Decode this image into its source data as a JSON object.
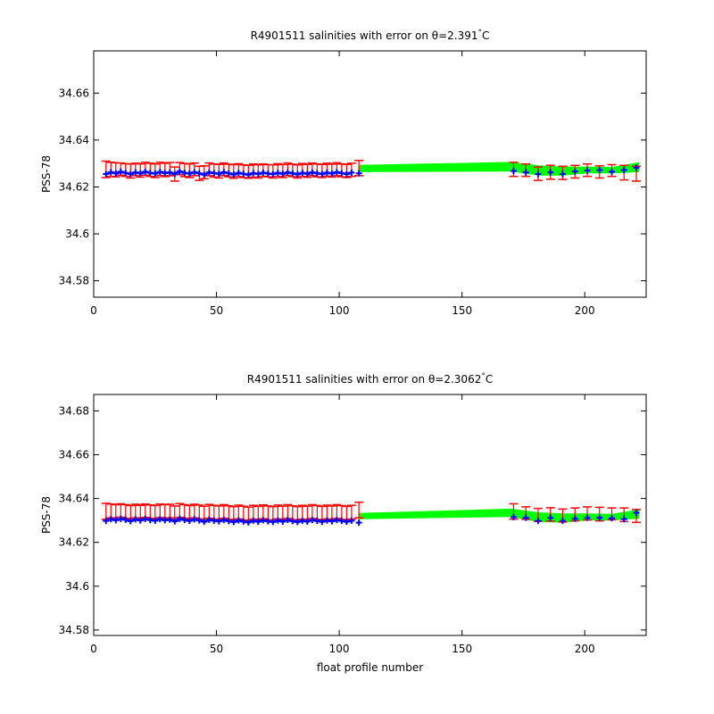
{
  "chart_data": [
    {
      "type": "scatter",
      "title": "R4901511 salinities with error on θ=2.391",
      "title_superscript": "°",
      "title_unit": "C",
      "xlabel": "",
      "ylabel": "PSS-78",
      "xlim": [
        0,
        225
      ],
      "ylim": [
        34.573,
        34.678
      ],
      "xticks": [
        0,
        50,
        100,
        150,
        200
      ],
      "yticks": [
        34.58,
        34.6,
        34.62,
        34.64,
        34.66
      ],
      "ytick_labels": [
        "34.58",
        "34.6",
        "34.62",
        "34.64",
        "34.66"
      ],
      "colors": {
        "uncal": "#0000ff",
        "error": "#ff0000",
        "band": "#00ff00"
      },
      "points": [
        [
          5,
          34.6255
        ],
        [
          7,
          34.6263
        ],
        [
          9,
          34.6258
        ],
        [
          11,
          34.6265
        ],
        [
          13,
          34.626
        ],
        [
          15,
          34.6255
        ],
        [
          17,
          34.6262
        ],
        [
          19,
          34.6258
        ],
        [
          21,
          34.6265
        ],
        [
          23,
          34.626
        ],
        [
          25,
          34.6257
        ],
        [
          27,
          34.6264
        ],
        [
          29,
          34.6259
        ],
        [
          31,
          34.6262
        ],
        [
          33,
          34.6255
        ],
        [
          35,
          34.6266
        ],
        [
          37,
          34.626
        ],
        [
          39,
          34.6257
        ],
        [
          41,
          34.6263
        ],
        [
          43,
          34.6258
        ],
        [
          45,
          34.6252
        ],
        [
          47,
          34.6262
        ],
        [
          49,
          34.6259
        ],
        [
          51,
          34.6256
        ],
        [
          53,
          34.6263
        ],
        [
          55,
          34.6258
        ],
        [
          57,
          34.6253
        ],
        [
          59,
          34.626
        ],
        [
          61,
          34.6256
        ],
        [
          63,
          34.6252
        ],
        [
          65,
          34.6259
        ],
        [
          67,
          34.6255
        ],
        [
          69,
          34.6261
        ],
        [
          71,
          34.6257
        ],
        [
          73,
          34.6255
        ],
        [
          75,
          34.626
        ],
        [
          77,
          34.6256
        ],
        [
          79,
          34.6262
        ],
        [
          81,
          34.6258
        ],
        [
          83,
          34.6254
        ],
        [
          85,
          34.626
        ],
        [
          87,
          34.6256
        ],
        [
          89,
          34.6262
        ],
        [
          91,
          34.6258
        ],
        [
          93,
          34.6255
        ],
        [
          95,
          34.6261
        ],
        [
          97,
          34.6257
        ],
        [
          99,
          34.6263
        ],
        [
          101,
          34.6259
        ],
        [
          103,
          34.6255
        ],
        [
          105,
          34.6261
        ],
        [
          108,
          34.6258
        ],
        [
          171,
          34.6268
        ],
        [
          176,
          34.6262
        ],
        [
          181,
          34.6255
        ],
        [
          186,
          34.6262
        ],
        [
          191,
          34.6255
        ],
        [
          196,
          34.6266
        ],
        [
          201,
          34.627
        ],
        [
          206,
          34.6272
        ],
        [
          211,
          34.6265
        ],
        [
          216,
          34.6272
        ],
        [
          221,
          34.6282
        ]
      ],
      "error_bars": [
        [
          5,
          34.624,
          34.631
        ],
        [
          7,
          34.6245,
          34.6305
        ],
        [
          9,
          34.6243,
          34.6303
        ],
        [
          11,
          34.625,
          34.6302
        ],
        [
          13,
          34.6245,
          34.6299
        ],
        [
          15,
          34.6238,
          34.6298
        ],
        [
          17,
          34.6248,
          34.6301
        ],
        [
          19,
          34.6242,
          34.6298
        ],
        [
          21,
          34.625,
          34.6305
        ],
        [
          23,
          34.6245,
          34.6301
        ],
        [
          25,
          34.624,
          34.6298
        ],
        [
          27,
          34.6248,
          34.6305
        ],
        [
          29,
          34.6244,
          34.6301
        ],
        [
          31,
          34.6248,
          34.6304
        ],
        [
          33,
          34.6225,
          34.6285
        ],
        [
          35,
          34.6252,
          34.6304
        ],
        [
          37,
          34.6244,
          34.63
        ],
        [
          39,
          34.624,
          34.6298
        ],
        [
          41,
          34.6248,
          34.6302
        ],
        [
          43,
          34.6228,
          34.6288
        ],
        [
          45,
          34.6235,
          34.629
        ],
        [
          47,
          34.6248,
          34.6302
        ],
        [
          49,
          34.6242,
          34.6298
        ],
        [
          51,
          34.6238,
          34.6296
        ],
        [
          53,
          34.6248,
          34.6302
        ],
        [
          55,
          34.6243,
          34.6297
        ],
        [
          57,
          34.6237,
          34.6295
        ],
        [
          59,
          34.6244,
          34.6299
        ],
        [
          61,
          34.624,
          34.6294
        ],
        [
          63,
          34.6237,
          34.6292
        ],
        [
          65,
          34.6242,
          34.6298
        ],
        [
          67,
          34.6238,
          34.6294
        ],
        [
          69,
          34.6245,
          34.6298
        ],
        [
          71,
          34.6243,
          34.6295
        ],
        [
          73,
          34.6238,
          34.6294
        ],
        [
          75,
          34.6245,
          34.6299
        ],
        [
          77,
          34.624,
          34.6295
        ],
        [
          79,
          34.6248,
          34.6302
        ],
        [
          81,
          34.6244,
          34.6297
        ],
        [
          83,
          34.6238,
          34.6294
        ],
        [
          85,
          34.6245,
          34.63
        ],
        [
          87,
          34.6241,
          34.6296
        ],
        [
          89,
          34.6248,
          34.6302
        ],
        [
          91,
          34.6243,
          34.6298
        ],
        [
          93,
          34.624,
          34.6296
        ],
        [
          95,
          34.6246,
          34.6301
        ],
        [
          97,
          34.6242,
          34.6297
        ],
        [
          99,
          34.6248,
          34.6303
        ],
        [
          101,
          34.6243,
          34.6298
        ],
        [
          103,
          34.624,
          34.6296
        ],
        [
          105,
          34.6245,
          34.6301
        ],
        [
          108,
          34.6248,
          34.6313
        ],
        [
          171,
          34.6245,
          34.6305
        ],
        [
          176,
          34.6245,
          34.6298
        ],
        [
          181,
          34.6228,
          34.6285
        ],
        [
          186,
          34.6233,
          34.6292
        ],
        [
          191,
          34.6232,
          34.6288
        ],
        [
          196,
          34.6238,
          34.6292
        ],
        [
          201,
          34.6245,
          34.6298
        ],
        [
          206,
          34.6238,
          34.629
        ],
        [
          211,
          34.6245,
          34.6295
        ],
        [
          216,
          34.623,
          34.6292
        ],
        [
          221,
          34.6225,
          34.6288
        ]
      ],
      "band": [
        [
          108,
          34.6265,
          34.6292
        ],
        [
          170,
          34.6268,
          34.6305
        ],
        [
          181,
          34.625,
          34.629
        ],
        [
          191,
          34.625,
          34.6285
        ],
        [
          201,
          34.626,
          34.6285
        ],
        [
          211,
          34.626,
          34.6283
        ],
        [
          222,
          34.6265,
          34.6303
        ]
      ]
    },
    {
      "type": "scatter",
      "title": "R4901511 salinities with error on θ=2.3062",
      "title_superscript": "°",
      "title_unit": "C",
      "xlabel": "float profile number",
      "ylabel": "PSS-78",
      "xlim": [
        0,
        225
      ],
      "ylim": [
        34.5775,
        34.6875
      ],
      "xticks": [
        0,
        50,
        100,
        150,
        200
      ],
      "yticks": [
        34.58,
        34.6,
        34.62,
        34.64,
        34.66,
        34.68
      ],
      "ytick_labels": [
        "34.58",
        "34.6",
        "34.62",
        "34.64",
        "34.66",
        "34.68"
      ],
      "colors": {
        "uncal": "#0000ff",
        "error": "#ff0000",
        "band": "#00ff00"
      },
      "points": [
        [
          5,
          34.6298
        ],
        [
          7,
          34.6306
        ],
        [
          9,
          34.6301
        ],
        [
          11,
          34.6307
        ],
        [
          13,
          34.6303
        ],
        [
          15,
          34.6297
        ],
        [
          17,
          34.6305
        ],
        [
          19,
          34.63
        ],
        [
          21,
          34.6307
        ],
        [
          23,
          34.6302
        ],
        [
          25,
          34.6299
        ],
        [
          27,
          34.6306
        ],
        [
          29,
          34.6301
        ],
        [
          31,
          34.6304
        ],
        [
          33,
          34.6296
        ],
        [
          35,
          34.6307
        ],
        [
          37,
          34.6302
        ],
        [
          39,
          34.6298
        ],
        [
          41,
          34.6305
        ],
        [
          43,
          34.63
        ],
        [
          45,
          34.6294
        ],
        [
          47,
          34.6303
        ],
        [
          49,
          34.6299
        ],
        [
          51,
          34.6296
        ],
        [
          53,
          34.6302
        ],
        [
          55,
          34.6297
        ],
        [
          57,
          34.6293
        ],
        [
          59,
          34.63
        ],
        [
          61,
          34.6295
        ],
        [
          63,
          34.6291
        ],
        [
          65,
          34.6299
        ],
        [
          67,
          34.6294
        ],
        [
          69,
          34.6301
        ],
        [
          71,
          34.6296
        ],
        [
          73,
          34.6293
        ],
        [
          75,
          34.63
        ],
        [
          77,
          34.6295
        ],
        [
          79,
          34.6302
        ],
        [
          81,
          34.6297
        ],
        [
          83,
          34.6293
        ],
        [
          85,
          34.6299
        ],
        [
          87,
          34.6295
        ],
        [
          89,
          34.6302
        ],
        [
          91,
          34.6298
        ],
        [
          93,
          34.6294
        ],
        [
          95,
          34.63
        ],
        [
          97,
          34.6296
        ],
        [
          99,
          34.6302
        ],
        [
          101,
          34.6298
        ],
        [
          103,
          34.6294
        ],
        [
          105,
          34.6299
        ],
        [
          108,
          34.629
        ],
        [
          171,
          34.6315
        ],
        [
          176,
          34.6312
        ],
        [
          181,
          34.6298
        ],
        [
          186,
          34.6312
        ],
        [
          191,
          34.6298
        ],
        [
          196,
          34.6308
        ],
        [
          201,
          34.6312
        ],
        [
          206,
          34.6312
        ],
        [
          211,
          34.631
        ],
        [
          216,
          34.6306
        ],
        [
          221,
          34.6335
        ]
      ],
      "error_bars": [
        [
          5,
          34.6305,
          34.6378
        ],
        [
          7,
          34.6312,
          34.6375
        ],
        [
          9,
          34.6308,
          34.6372
        ],
        [
          11,
          34.6315,
          34.6376
        ],
        [
          13,
          34.631,
          34.6372
        ],
        [
          15,
          34.6304,
          34.6368
        ],
        [
          17,
          34.6312,
          34.6374
        ],
        [
          19,
          34.6308,
          34.6369
        ],
        [
          21,
          34.6314,
          34.6375
        ],
        [
          23,
          34.631,
          34.6371
        ],
        [
          25,
          34.6306,
          34.6368
        ],
        [
          27,
          34.6313,
          34.6375
        ],
        [
          29,
          34.6309,
          34.6372
        ],
        [
          31,
          34.6312,
          34.6374
        ],
        [
          33,
          34.6304,
          34.6366
        ],
        [
          35,
          34.6314,
          34.6377
        ],
        [
          37,
          34.631,
          34.6372
        ],
        [
          39,
          34.6305,
          34.6368
        ],
        [
          41,
          34.6312,
          34.6374
        ],
        [
          43,
          34.6307,
          34.637
        ],
        [
          45,
          34.6301,
          34.6365
        ],
        [
          47,
          34.631,
          34.6373
        ],
        [
          49,
          34.6306,
          34.6369
        ],
        [
          51,
          34.6303,
          34.6366
        ],
        [
          53,
          34.631,
          34.6372
        ],
        [
          55,
          34.6305,
          34.6367
        ],
        [
          57,
          34.63,
          34.6363
        ],
        [
          59,
          34.6307,
          34.637
        ],
        [
          61,
          34.6302,
          34.6365
        ],
        [
          63,
          34.6298,
          34.6361
        ],
        [
          65,
          34.6306,
          34.6369
        ],
        [
          67,
          34.6301,
          34.6364
        ],
        [
          69,
          34.6308,
          34.6371
        ],
        [
          71,
          34.6303,
          34.6366
        ],
        [
          73,
          34.63,
          34.6363
        ],
        [
          75,
          34.6307,
          34.637
        ],
        [
          77,
          34.6302,
          34.6365
        ],
        [
          79,
          34.6309,
          34.6372
        ],
        [
          81,
          34.6304,
          34.6367
        ],
        [
          83,
          34.63,
          34.6363
        ],
        [
          85,
          34.6306,
          34.6369
        ],
        [
          87,
          34.6302,
          34.6365
        ],
        [
          89,
          34.6309,
          34.6372
        ],
        [
          91,
          34.6305,
          34.6368
        ],
        [
          93,
          34.6301,
          34.6364
        ],
        [
          95,
          34.6307,
          34.637
        ],
        [
          97,
          34.6303,
          34.6366
        ],
        [
          99,
          34.6309,
          34.6372
        ],
        [
          101,
          34.6305,
          34.6368
        ],
        [
          103,
          34.6301,
          34.6364
        ],
        [
          105,
          34.6306,
          34.6369
        ],
        [
          108,
          34.6312,
          34.6383
        ],
        [
          171,
          34.6306,
          34.6376
        ],
        [
          176,
          34.6305,
          34.6362
        ],
        [
          181,
          34.6296,
          34.6355
        ],
        [
          186,
          34.6297,
          34.6358
        ],
        [
          191,
          34.6293,
          34.6352
        ],
        [
          196,
          34.6298,
          34.6357
        ],
        [
          201,
          34.6302,
          34.6362
        ],
        [
          206,
          34.6298,
          34.636
        ],
        [
          211,
          34.6303,
          34.6357
        ],
        [
          216,
          34.6295,
          34.6357
        ],
        [
          221,
          34.6291,
          34.635
        ]
      ],
      "band": [
        [
          108,
          34.6308,
          34.6332
        ],
        [
          170,
          34.6318,
          34.6352
        ],
        [
          181,
          34.6295,
          34.6335
        ],
        [
          191,
          34.6292,
          34.633
        ],
        [
          201,
          34.6302,
          34.633
        ],
        [
          211,
          34.6302,
          34.6328
        ],
        [
          222,
          34.631,
          34.6348
        ]
      ]
    }
  ]
}
